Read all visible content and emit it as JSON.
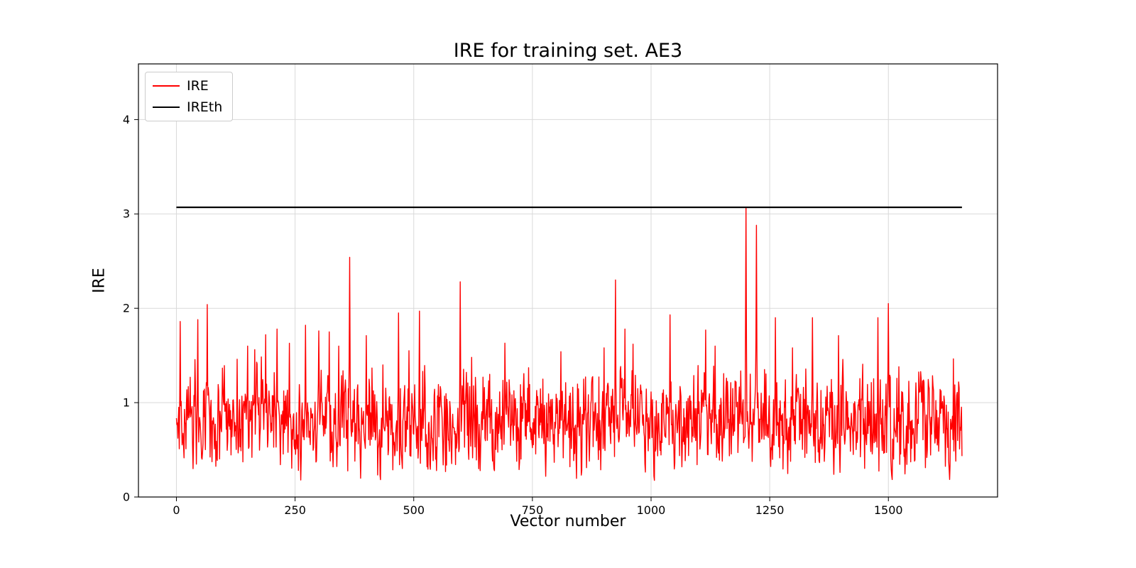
{
  "chart_data": {
    "type": "line",
    "title": "IRE for training set. AE3",
    "xlabel": "Vector number",
    "ylabel": "IRE",
    "xlim": [
      -80,
      1730
    ],
    "ylim": [
      0,
      4.59
    ],
    "xticks": [
      0,
      250,
      500,
      750,
      1000,
      1250,
      1500
    ],
    "yticks": [
      0,
      1,
      2,
      3,
      4
    ],
    "grid": true,
    "grid_color": "#d9d9d9",
    "legend_position": "upper-left",
    "legend": [
      {
        "label": "IRE",
        "color": "#ff0000"
      },
      {
        "label": "IREth",
        "color": "#000000"
      }
    ],
    "threshold": {
      "name": "IREth",
      "value": 3.07,
      "x_start": 0,
      "x_end": 1655,
      "color": "#000000"
    },
    "series": {
      "name": "IRE",
      "color": "#ff0000",
      "n_points": 1656,
      "noise": {
        "seed": 42,
        "base_mean": 0.8,
        "base_min": 0.16,
        "base_max": 1.9
      },
      "peaks": [
        {
          "x": 8,
          "y": 1.86
        },
        {
          "x": 45,
          "y": 1.88
        },
        {
          "x": 65,
          "y": 2.04
        },
        {
          "x": 128,
          "y": 1.46
        },
        {
          "x": 150,
          "y": 1.6
        },
        {
          "x": 188,
          "y": 1.72
        },
        {
          "x": 212,
          "y": 1.78
        },
        {
          "x": 238,
          "y": 1.63
        },
        {
          "x": 272,
          "y": 1.82
        },
        {
          "x": 300,
          "y": 1.76
        },
        {
          "x": 322,
          "y": 1.75
        },
        {
          "x": 342,
          "y": 1.6
        },
        {
          "x": 365,
          "y": 2.54
        },
        {
          "x": 400,
          "y": 1.71
        },
        {
          "x": 435,
          "y": 1.4
        },
        {
          "x": 468,
          "y": 1.95
        },
        {
          "x": 490,
          "y": 1.55
        },
        {
          "x": 512,
          "y": 1.97
        },
        {
          "x": 598,
          "y": 2.28
        },
        {
          "x": 622,
          "y": 1.48
        },
        {
          "x": 660,
          "y": 1.3
        },
        {
          "x": 742,
          "y": 1.37
        },
        {
          "x": 772,
          "y": 1.25
        },
        {
          "x": 810,
          "y": 1.54
        },
        {
          "x": 858,
          "y": 1.25
        },
        {
          "x": 925,
          "y": 2.3
        },
        {
          "x": 945,
          "y": 1.78
        },
        {
          "x": 962,
          "y": 1.62
        },
        {
          "x": 1040,
          "y": 1.93
        },
        {
          "x": 1115,
          "y": 1.77
        },
        {
          "x": 1135,
          "y": 1.6
        },
        {
          "x": 1172,
          "y": 1.15
        },
        {
          "x": 1200,
          "y": 3.07
        },
        {
          "x": 1222,
          "y": 2.88
        },
        {
          "x": 1262,
          "y": 1.9
        },
        {
          "x": 1298,
          "y": 1.58
        },
        {
          "x": 1340,
          "y": 1.9
        },
        {
          "x": 1395,
          "y": 1.71
        },
        {
          "x": 1478,
          "y": 1.9
        },
        {
          "x": 1500,
          "y": 2.05
        },
        {
          "x": 1522,
          "y": 1.38
        },
        {
          "x": 1575,
          "y": 1.22
        },
        {
          "x": 1648,
          "y": 1.22
        }
      ],
      "dips": [
        {
          "x": 35,
          "y": 0.3
        },
        {
          "x": 262,
          "y": 0.18
        },
        {
          "x": 330,
          "y": 0.32
        },
        {
          "x": 528,
          "y": 0.32
        },
        {
          "x": 548,
          "y": 0.28
        },
        {
          "x": 562,
          "y": 0.34
        },
        {
          "x": 640,
          "y": 0.28
        },
        {
          "x": 778,
          "y": 0.22
        },
        {
          "x": 870,
          "y": 0.38
        },
        {
          "x": 1065,
          "y": 0.32
        },
        {
          "x": 1150,
          "y": 0.38
        },
        {
          "x": 1385,
          "y": 0.24
        },
        {
          "x": 1398,
          "y": 0.26
        },
        {
          "x": 1555,
          "y": 0.38
        },
        {
          "x": 1628,
          "y": 0.3
        }
      ]
    }
  }
}
